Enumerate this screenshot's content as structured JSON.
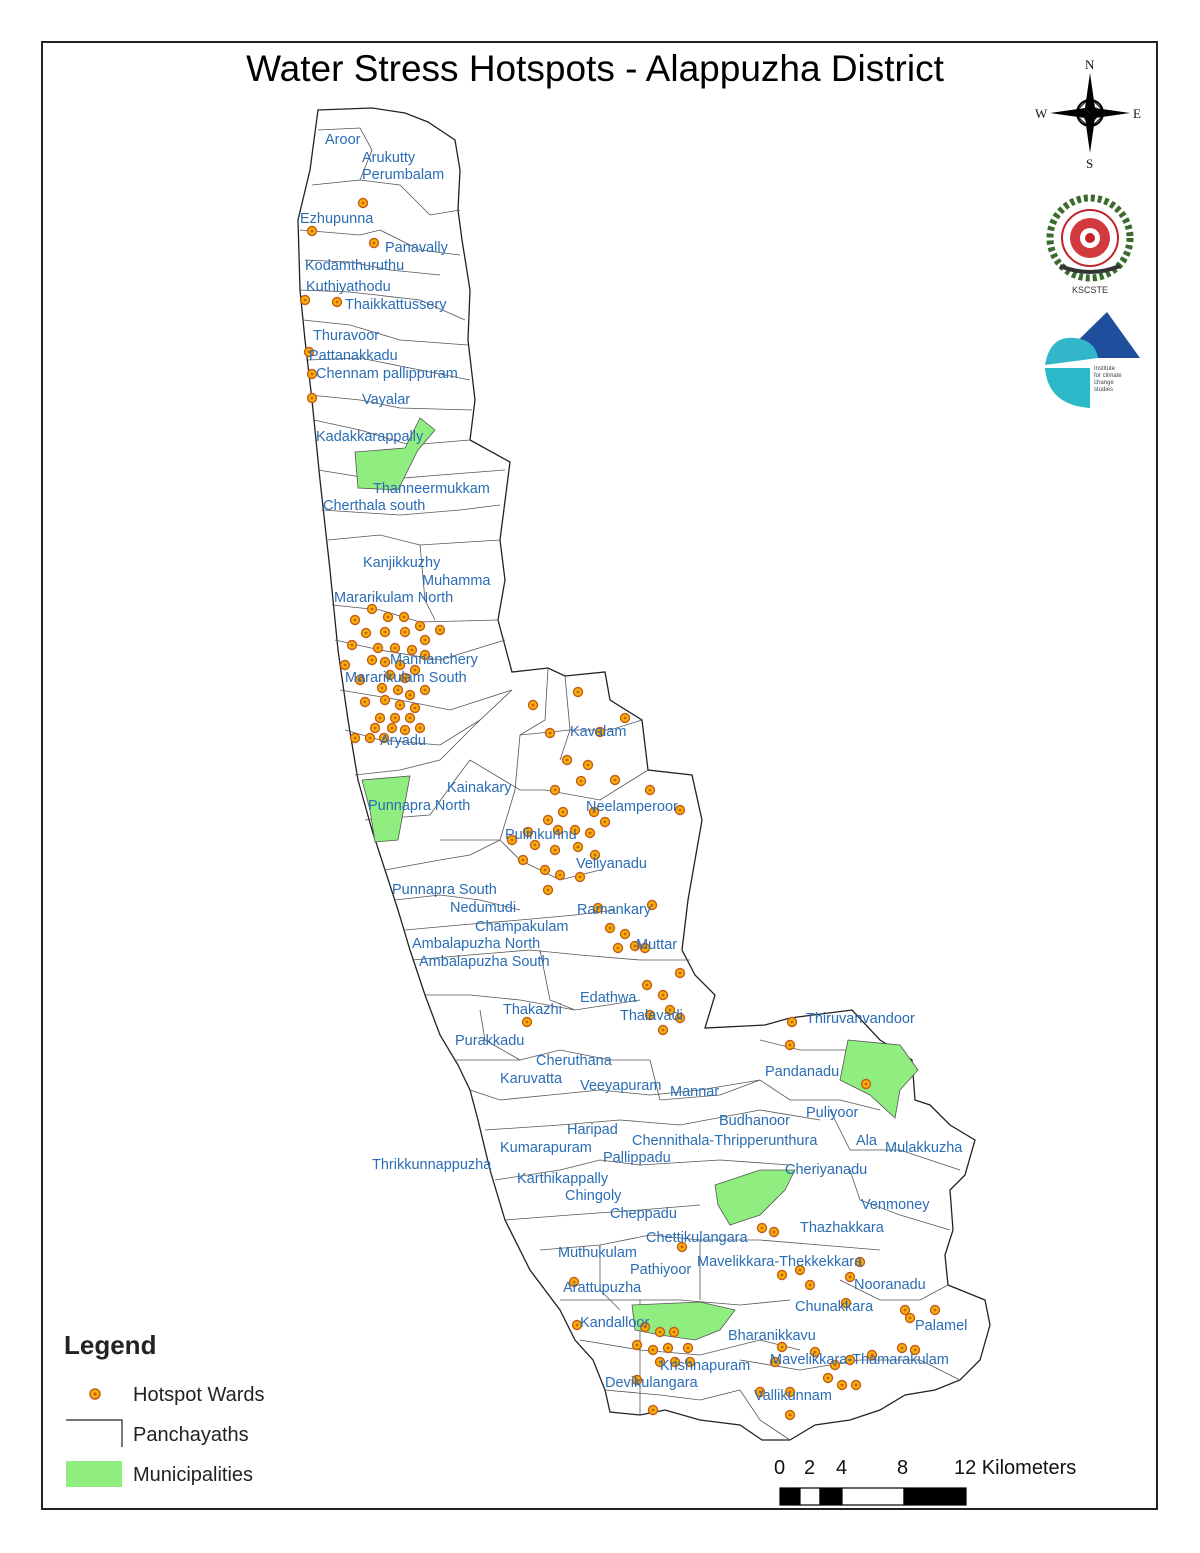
{
  "title": "Water Stress Hotspots - Alappuzha District",
  "compass": {
    "n": "N",
    "s": "S",
    "e": "E",
    "w": "W"
  },
  "logos": [
    {
      "name": "KSCSTE",
      "text": "KSCSTE"
    },
    {
      "name": "Institute for Climate Change Studies",
      "text": "Institute for climate change studies"
    }
  ],
  "legend": {
    "title": "Legend",
    "items": [
      {
        "label": "Hotspot Wards",
        "symbol": "hotspot-dot"
      },
      {
        "label": "Panchayaths",
        "symbol": "outline"
      },
      {
        "label": "Municipalities",
        "symbol": "green-fill"
      }
    ]
  },
  "scale_bar": {
    "labels": [
      "0",
      "2",
      "4",
      "8",
      "12 Kilometers"
    ]
  },
  "colors": {
    "label": "#2a6db5",
    "municipality": "#90ee80",
    "hotspot_fill": "#f5b400",
    "hotspot_ring": "#c85a1e"
  },
  "places": [
    "Aroor",
    "Arukutty",
    "Perumbalam",
    "Ezhupunna",
    "Panavally",
    "Kodamthuruthu",
    "Kuthiyathodu",
    "Thaikkattussery",
    "Thuravoor",
    "Pattanakkadu",
    "Chennam pallippuram",
    "Vayalar",
    "Kadakkarappally",
    "Thanneermukkam",
    "Cherthala south",
    "Kanjikkuzhy",
    "Muhamma",
    "Mararikulam North",
    "Mannanchery",
    "Mararikulam South",
    "Aryadu",
    "Kavalam",
    "Kainakary",
    "Punnapra North",
    "Neelamperoor",
    "Pulinkunnu",
    "Veliyanadu",
    "Punnapra South",
    "Nedumudi",
    "Ramankary",
    "Champakulam",
    "Ambalapuzha North",
    "Muttar",
    "Ambalapuzha South",
    "Edathwa",
    "Thakazhi",
    "Thalavadi",
    "Thiruvanvandoor",
    "Purakkadu",
    "Cheruthana",
    "Pandanadu",
    "Karuvatta",
    "Veeyapuram",
    "Mannar",
    "Budhanoor",
    "Puliyoor",
    "Haripad",
    "Ala",
    "Chennithala-Thripperunthura",
    "Mulakkuzha",
    "Kumarapuram",
    "Pallippadu",
    "Cheriyanadu",
    "Thrikkunnappuzha",
    "Karthikappally",
    "Chingoly",
    "Venmoney",
    "Cheppadu",
    "Thazhakkara",
    "Chettikulangara",
    "Muthukulam",
    "Mavelikkara-Thekkekkara",
    "Pathiyoor",
    "Nooranadu",
    "Arattupuzha",
    "Chunakkara",
    "Kandalloor",
    "Palamel",
    "Bharanikkavu",
    "Krishnapuram",
    "Mavelikkara-Thamarakulam",
    "Devikulangara",
    "Vallikunnam"
  ]
}
